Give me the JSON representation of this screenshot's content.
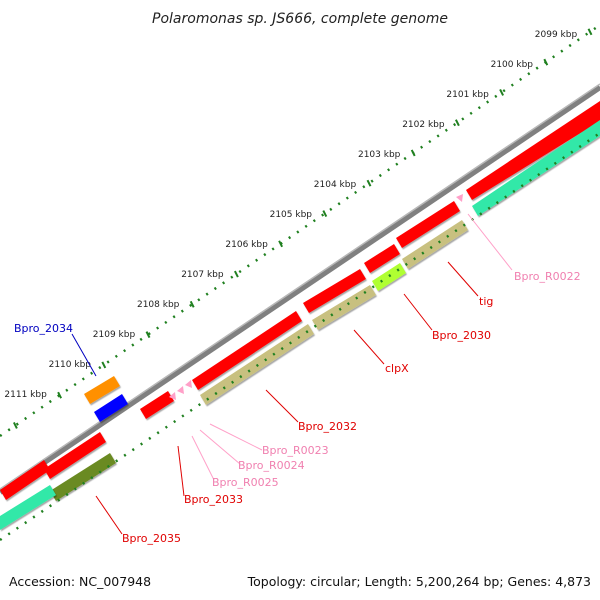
{
  "title": "Polaromonas sp. JS666, complete genome",
  "accession": "Accession: NC_007948",
  "summary": "Topology: circular; Length: 5,200,264 bp; Genes: 4,873",
  "colors": {
    "backbone": "#808080",
    "cds": "#ff0000",
    "trna": "#ffa0c8",
    "cog_olive": "#c8c080",
    "cog_green": "#80c000",
    "cog_yellowgreen": "#b0ff30",
    "cog_teal": "#30e8a8",
    "other_orange": "#ff9000",
    "other_blue": "#0000ff",
    "tick_green": "#208020",
    "label_red": "#e00000",
    "label_pink": "#f080b0",
    "label_blue": "#0000c0"
  },
  "scale_labels": [
    "2099 kbp",
    "2100 kbp",
    "2101 kbp",
    "2102 kbp",
    "2103 kbp",
    "2104 kbp",
    "2105 kbp",
    "2106 kbp",
    "2107 kbp",
    "2108 kbp",
    "2109 kbp",
    "2110 kbp",
    "2111 kbp"
  ],
  "genes": [
    {
      "name": "Bpro_2034",
      "color": "blue"
    },
    {
      "name": "Bpro_R0022",
      "color": "pink"
    },
    {
      "name": "tig",
      "color": "red"
    },
    {
      "name": "Bpro_2030",
      "color": "red"
    },
    {
      "name": "clpX",
      "color": "red"
    },
    {
      "name": "Bpro_2032",
      "color": "red"
    },
    {
      "name": "Bpro_R0023",
      "color": "pink"
    },
    {
      "name": "Bpro_R0024",
      "color": "pink"
    },
    {
      "name": "Bpro_R0025",
      "color": "pink"
    },
    {
      "name": "Bpro_2033",
      "color": "red"
    },
    {
      "name": "Bpro_2035",
      "color": "red"
    }
  ]
}
